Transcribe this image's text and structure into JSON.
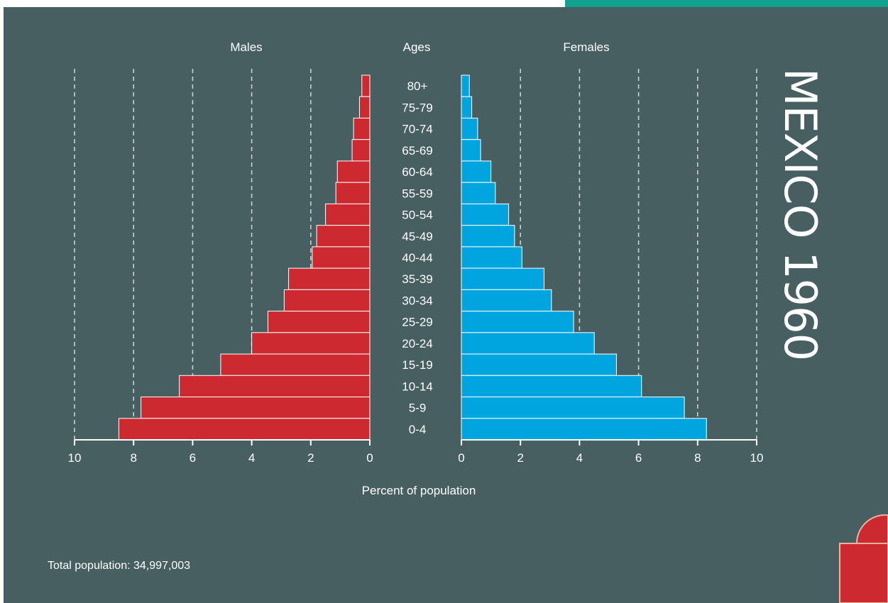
{
  "title": "MEXICO 1960",
  "total_population_text": "Total population: 34,997,003",
  "colors": {
    "background": "#485f62",
    "accent": "#11a18f",
    "males": "#cc2a30",
    "females": "#00a5e0",
    "decor": "#cc2a30"
  },
  "chart_data": {
    "type": "bar",
    "orientation": "horizontal-population-pyramid",
    "column_labels": {
      "males": "Males",
      "ages": "Ages",
      "females": "Females"
    },
    "xlabel": "Percent of population",
    "xlim": [
      0,
      10
    ],
    "xticks": [
      "0",
      "2",
      "4",
      "6",
      "8",
      "10"
    ],
    "grid": true,
    "categories": [
      "80+",
      "75-79",
      "70-74",
      "65-69",
      "60-64",
      "55-59",
      "50-54",
      "45-49",
      "40-44",
      "35-39",
      "30-34",
      "25-29",
      "20-24",
      "15-19",
      "10-14",
      "5-9",
      "0-4"
    ],
    "series": [
      {
        "name": "Males",
        "values": [
          0.27,
          0.35,
          0.55,
          0.6,
          1.1,
          1.15,
          1.5,
          1.8,
          1.95,
          2.75,
          2.9,
          3.45,
          4.0,
          5.05,
          6.45,
          7.75,
          8.5
        ]
      },
      {
        "name": "Females",
        "values": [
          0.27,
          0.35,
          0.55,
          0.65,
          1.0,
          1.15,
          1.6,
          1.8,
          2.05,
          2.8,
          3.05,
          3.8,
          4.5,
          5.25,
          6.1,
          7.55,
          8.3
        ]
      }
    ]
  }
}
